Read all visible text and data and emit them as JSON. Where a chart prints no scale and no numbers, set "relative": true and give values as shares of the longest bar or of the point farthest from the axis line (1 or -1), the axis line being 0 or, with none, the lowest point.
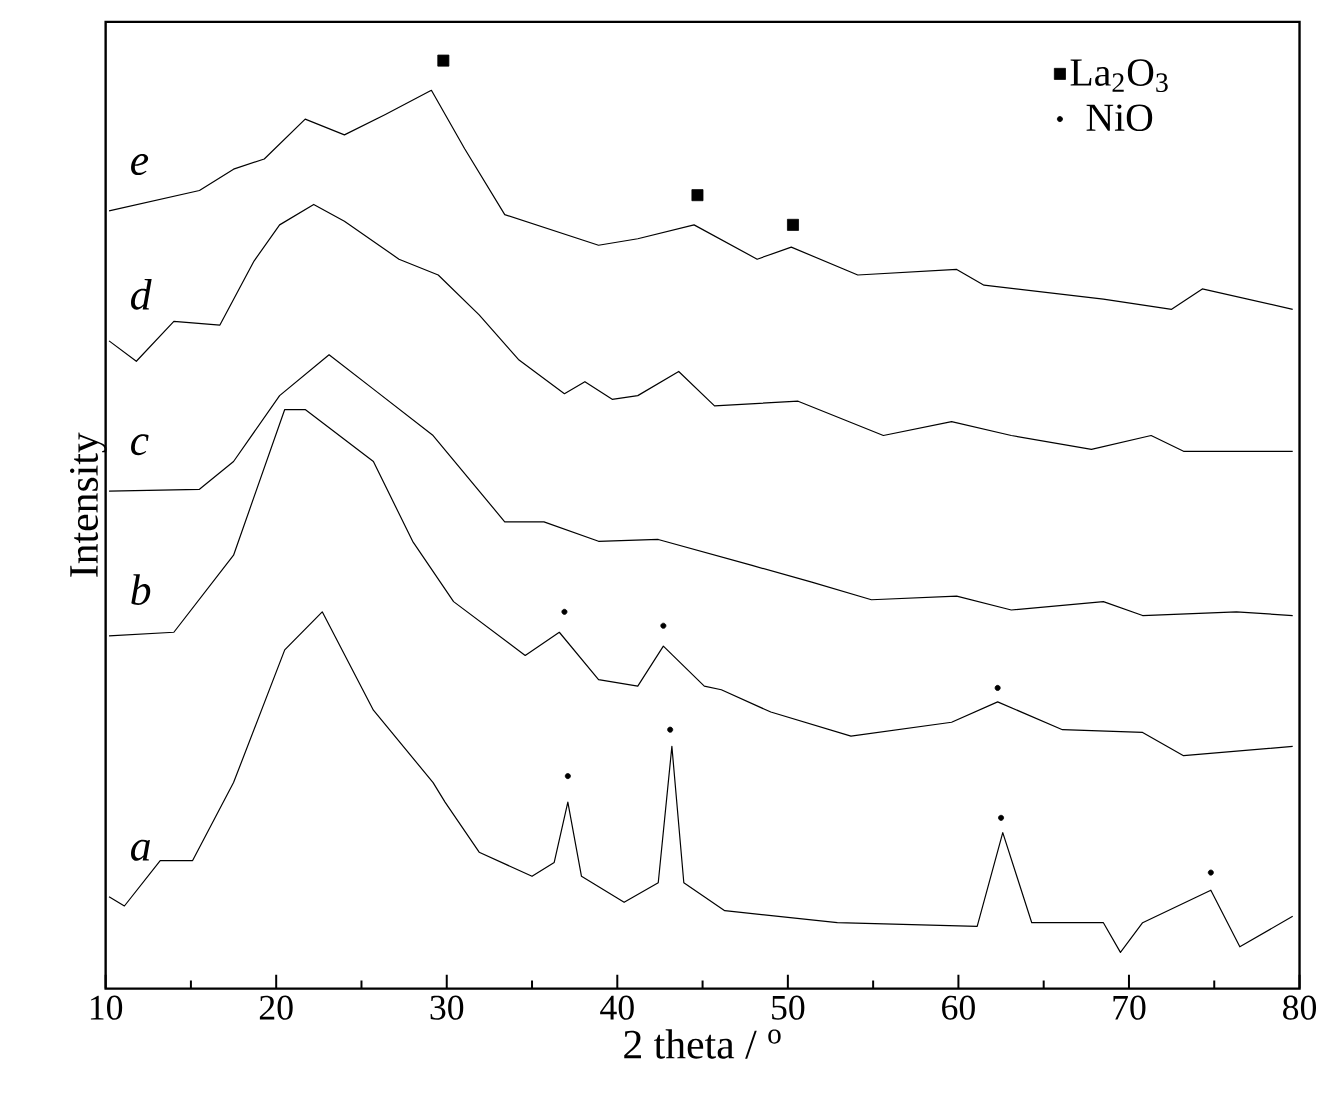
{
  "chart_data": {
    "type": "line",
    "relative": true,
    "xlabel": "2 theta / $^{o}$",
    "ylabel": "Intensity",
    "xlim": [
      10,
      80
    ],
    "xticks": [
      10,
      20,
      30,
      40,
      50,
      60,
      70,
      80
    ],
    "tick_labels": "x",
    "grid": false,
    "legend": "top right",
    "marker": "none",
    "line_style": "solid",
    "series": [
      {
        "name": "a",
        "color": "#000000",
        "x": [
          10.2,
          11.1,
          13.2,
          15.1,
          17.5,
          20.5,
          22.7,
          25.7,
          29.2,
          29.9,
          31.9,
          35.0,
          36.3,
          37.1,
          37.9,
          40.4,
          42.4,
          43.2,
          43.9,
          46.3,
          52.9,
          61.1,
          62.6,
          64.3,
          68.5,
          69.5,
          70.8,
          74.8,
          76.5,
          79.6
        ],
        "values": [
          0.099,
          0.089,
          0.138,
          0.138,
          0.222,
          0.365,
          0.406,
          0.3,
          0.222,
          0.201,
          0.147,
          0.121,
          0.136,
          0.201,
          0.121,
          0.093,
          0.114,
          0.261,
          0.114,
          0.084,
          0.071,
          0.067,
          0.168,
          0.071,
          0.071,
          0.039,
          0.071,
          0.106,
          0.045,
          0.078
        ]
      },
      {
        "name": "b",
        "color": "#000000",
        "x": [
          10.2,
          14.0,
          17.5,
          20.5,
          21.7,
          25.7,
          28.0,
          30.4,
          34.6,
          36.6,
          38.9,
          41.2,
          42.7,
          45.1,
          46.1,
          49.0,
          53.7,
          59.6,
          62.3,
          66.1,
          70.8,
          73.2,
          79.6
        ],
        "values": [
          0.38,
          0.384,
          0.467,
          0.624,
          0.624,
          0.568,
          0.482,
          0.417,
          0.359,
          0.384,
          0.333,
          0.326,
          0.369,
          0.326,
          0.322,
          0.298,
          0.272,
          0.287,
          0.309,
          0.279,
          0.276,
          0.251,
          0.261
        ]
      },
      {
        "name": "c",
        "color": "#000000",
        "x": [
          10.2,
          15.5,
          17.5,
          20.2,
          23.1,
          25.7,
          29.2,
          33.4,
          35.7,
          38.9,
          42.4,
          47.9,
          51.4,
          54.9,
          59.9,
          63.1,
          68.5,
          70.8,
          76.3,
          79.6
        ],
        "values": [
          0.536,
          0.538,
          0.568,
          0.639,
          0.683,
          0.646,
          0.596,
          0.503,
          0.503,
          0.482,
          0.484,
          0.456,
          0.438,
          0.419,
          0.423,
          0.408,
          0.417,
          0.402,
          0.406,
          0.402
        ]
      },
      {
        "name": "d",
        "color": "#000000",
        "x": [
          10.2,
          11.8,
          14.0,
          16.7,
          18.7,
          20.2,
          22.2,
          24.0,
          27.2,
          29.5,
          31.9,
          34.2,
          36.9,
          38.1,
          39.7,
          41.2,
          43.6,
          45.7,
          50.6,
          55.6,
          59.6,
          63.1,
          67.8,
          71.3,
          73.2,
          79.6
        ],
        "values": [
          0.698,
          0.676,
          0.719,
          0.715,
          0.784,
          0.823,
          0.845,
          0.827,
          0.786,
          0.769,
          0.726,
          0.678,
          0.641,
          0.654,
          0.635,
          0.639,
          0.665,
          0.628,
          0.633,
          0.596,
          0.611,
          0.596,
          0.581,
          0.596,
          0.579,
          0.579
        ]
      },
      {
        "name": "e",
        "color": "#000000",
        "x": [
          10.2,
          15.5,
          17.5,
          19.3,
          21.7,
          24.0,
          26.4,
          29.1,
          31.05,
          33.4,
          38.9,
          41.2,
          44.5,
          48.2,
          50.2,
          54.1,
          59.9,
          61.5,
          68.5,
          72.5,
          74.3,
          79.6
        ],
        "values": [
          0.838,
          0.86,
          0.883,
          0.894,
          0.937,
          0.92,
          0.942,
          0.968,
          0.905,
          0.834,
          0.801,
          0.808,
          0.823,
          0.786,
          0.799,
          0.769,
          0.775,
          0.758,
          0.743,
          0.732,
          0.754,
          0.732
        ]
      },
      {
        "name": "La$_{2}$O$_{3}$",
        "type": "scatter",
        "marker": "square",
        "color": "#000000",
        "x": [
          29.8,
          44.7,
          50.3
        ],
        "values": [
          1.0,
          0.855,
          0.823
        ]
      },
      {
        "name": "NiO",
        "type": "scatter",
        "marker": "circle",
        "color": "#000000",
        "x": [
          36.9,
          42.7,
          62.3,
          37.1,
          43.1,
          62.5,
          74.8
        ],
        "values": [
          0.406,
          0.391,
          0.324,
          0.229,
          0.279,
          0.184,
          0.125
        ]
      }
    ]
  }
}
